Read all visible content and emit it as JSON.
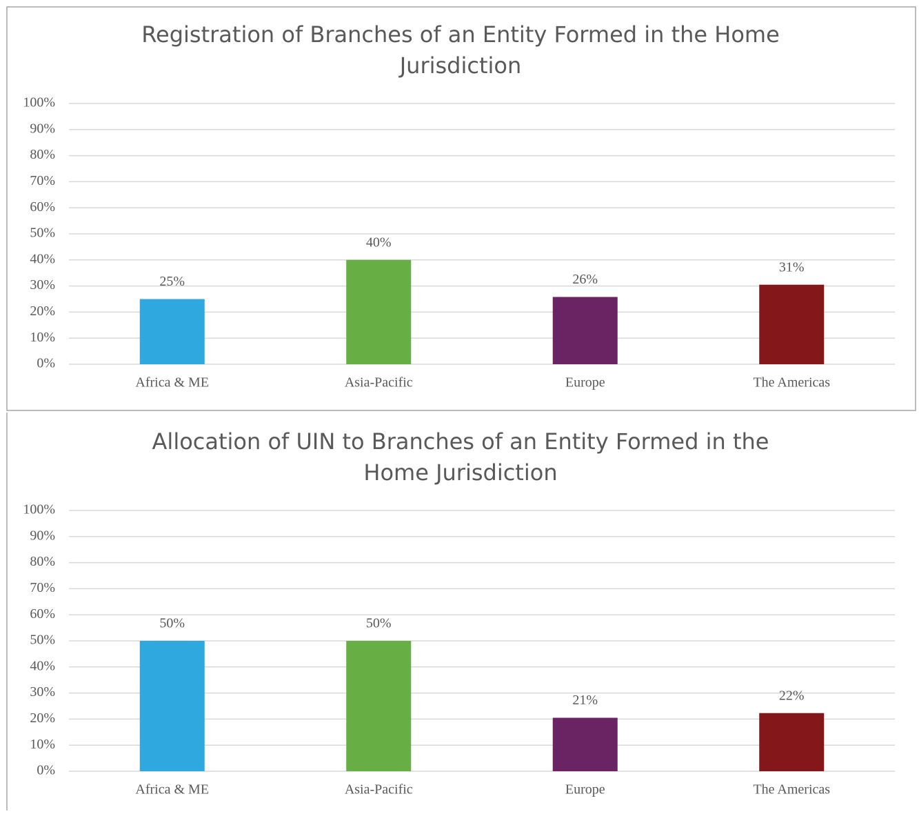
{
  "chart_data": [
    {
      "type": "bar",
      "title": [
        "Registration of Branches of an Entity Formed in the Home",
        "Jurisdiction"
      ],
      "categories": [
        "Africa & ME",
        "Asia-Pacific",
        "Europe",
        "The Americas"
      ],
      "values": [
        25,
        40,
        25.8,
        30.5
      ],
      "value_labels": [
        "25%",
        "40%",
        "26%",
        "31%"
      ],
      "colors": [
        "#2fa7df",
        "#67ae45",
        "#6a2463",
        "#831719"
      ],
      "ylim": [
        0,
        100
      ],
      "yticks": [
        {
          "value": 0,
          "label": "0%"
        },
        {
          "value": 10,
          "label": "10%"
        },
        {
          "value": 20,
          "label": "20%"
        },
        {
          "value": 30,
          "label": "30%"
        },
        {
          "value": 40,
          "label": "40%"
        },
        {
          "value": 50,
          "label": "50%"
        },
        {
          "value": 60,
          "label": "60%"
        },
        {
          "value": 70,
          "label": "70%"
        },
        {
          "value": 80,
          "label": "80%"
        },
        {
          "value": 90,
          "label": "90%"
        },
        {
          "value": 100,
          "label": "100%"
        }
      ],
      "grid": true
    },
    {
      "type": "bar",
      "title": [
        "Allocation of UIN to Branches of an Entity Formed in the",
        "Home Jurisdiction"
      ],
      "categories": [
        "Africa & ME",
        "Asia-Pacific",
        "Europe",
        "The Americas"
      ],
      "values": [
        50,
        50,
        20.5,
        22.3
      ],
      "value_labels": [
        "50%",
        "50%",
        "21%",
        "22%"
      ],
      "colors": [
        "#2fa7df",
        "#67ae45",
        "#6a2463",
        "#831719"
      ],
      "ylim": [
        0,
        100
      ],
      "yticks": [
        {
          "value": 0,
          "label": "0%"
        },
        {
          "value": 10,
          "label": "10%"
        },
        {
          "value": 20,
          "label": "20%"
        },
        {
          "value": 30,
          "label": "30%"
        },
        {
          "value": 40,
          "label": "40%"
        },
        {
          "value": 50,
          "label": "50%"
        },
        {
          "value": 60,
          "label": "60%"
        },
        {
          "value": 70,
          "label": "70%"
        },
        {
          "value": 80,
          "label": "80%"
        },
        {
          "value": 90,
          "label": "90%"
        },
        {
          "value": 100,
          "label": "100%"
        }
      ],
      "grid": true
    }
  ]
}
